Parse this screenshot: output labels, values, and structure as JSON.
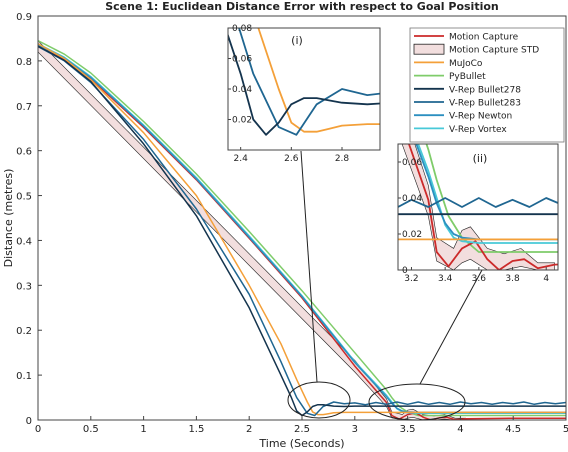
{
  "chart_data": {
    "type": "line",
    "title": "Scene 1: Euclidean Distance Error with respect to Goal Position",
    "xlabel": "Time (Seconds)",
    "ylabel": "Distance (metres)",
    "xlim": [
      0,
      5
    ],
    "ylim": [
      0,
      0.9
    ],
    "xticks": [
      "0",
      "0.5",
      "1",
      "1.5",
      "2",
      "2.5",
      "3",
      "3.5",
      "4",
      "4.5",
      "5"
    ],
    "yticks": [
      "0",
      "0.1",
      "0.2",
      "0.3",
      "0.4",
      "0.5",
      "0.6",
      "0.7",
      "0.8",
      "0.9"
    ],
    "grid": false,
    "legend_position": "top-right",
    "legend": [
      {
        "name": "Motion Capture",
        "color": "#cc2a2a",
        "kind": "line"
      },
      {
        "name": "Motion Capture STD",
        "color": "#f2dede",
        "kind": "band"
      },
      {
        "name": "MuJoCo",
        "color": "#f4a039",
        "kind": "line"
      },
      {
        "name": "PyBullet",
        "color": "#7fcc6a",
        "kind": "line"
      },
      {
        "name": "V-Rep Bullet278",
        "color": "#14344e",
        "kind": "line"
      },
      {
        "name": "V-Rep Bullet283",
        "color": "#1f6691",
        "kind": "line"
      },
      {
        "name": "V-Rep Newton",
        "color": "#2c8fc0",
        "kind": "line"
      },
      {
        "name": "V-Rep Vortex",
        "color": "#48c9d8",
        "kind": "line"
      }
    ],
    "std_band": {
      "x": [
        0,
        3.0,
        3.3,
        3.35,
        3.45,
        3.5,
        3.55,
        3.65,
        3.75,
        3.85,
        3.95,
        4.05
      ],
      "lower": [
        0.82,
        0.107,
        0.03,
        0.005,
        0.0,
        0.004,
        0.006,
        0.0,
        0.0,
        0.002,
        0.0,
        0.0
      ],
      "upper": [
        0.845,
        0.133,
        0.047,
        0.018,
        0.012,
        0.022,
        0.024,
        0.012,
        0.009,
        0.012,
        0.004,
        0.004
      ]
    },
    "series": [
      {
        "name": "PyBullet",
        "color": "#7fcc6a",
        "x": [
          0,
          0.25,
          0.5,
          1.0,
          1.5,
          2.0,
          2.5,
          3.0,
          3.3,
          3.35,
          3.42,
          3.5,
          3.6,
          3.75,
          3.9,
          4.1,
          4.5,
          5.0
        ],
        "y": [
          0.845,
          0.815,
          0.773,
          0.665,
          0.548,
          0.42,
          0.288,
          0.15,
          0.067,
          0.05,
          0.03,
          0.018,
          0.01,
          0.01,
          0.01,
          0.01,
          0.01,
          0.01
        ]
      },
      {
        "name": "Motion Capture",
        "color": "#cc2a2a",
        "x": [
          0,
          0.25,
          0.5,
          1.0,
          1.5,
          2.0,
          2.5,
          3.0,
          3.3,
          3.35,
          3.42,
          3.5,
          3.58,
          3.65,
          3.72,
          3.8,
          3.87,
          3.95,
          4.05,
          4.5,
          5.0
        ],
        "y": [
          0.832,
          0.803,
          0.76,
          0.652,
          0.535,
          0.405,
          0.272,
          0.12,
          0.039,
          0.01,
          0.002,
          0.012,
          0.016,
          0.006,
          0.0,
          0.005,
          0.006,
          0.001,
          0.003,
          0.004,
          0.004
        ]
      },
      {
        "name": "V-Rep Vortex",
        "color": "#48c9d8",
        "x": [
          0,
          0.25,
          0.5,
          1.0,
          1.5,
          2.0,
          2.5,
          3.0,
          3.3,
          3.35,
          3.4,
          3.45,
          3.5,
          3.6,
          4.0,
          4.5,
          5.0
        ],
        "y": [
          0.838,
          0.808,
          0.765,
          0.657,
          0.54,
          0.41,
          0.277,
          0.13,
          0.055,
          0.04,
          0.025,
          0.018,
          0.016,
          0.015,
          0.015,
          0.015,
          0.015
        ]
      },
      {
        "name": "V-Rep Newton",
        "color": "#2c8fc0",
        "x": [
          0,
          0.25,
          0.5,
          1.0,
          1.5,
          2.0,
          2.5,
          3.0,
          3.3,
          3.35,
          3.4,
          3.45,
          3.5,
          3.6,
          4.0,
          4.5,
          5.0
        ],
        "y": [
          0.836,
          0.806,
          0.763,
          0.655,
          0.537,
          0.407,
          0.275,
          0.128,
          0.052,
          0.037,
          0.026,
          0.02,
          0.018,
          0.017,
          0.017,
          0.017,
          0.017
        ]
      },
      {
        "name": "MuJoCo",
        "color": "#f4a039",
        "x": [
          0,
          0.25,
          0.5,
          1.0,
          1.5,
          2.0,
          2.3,
          2.45,
          2.55,
          2.6,
          2.65,
          2.7,
          2.75,
          2.8,
          2.9,
          3.0,
          3.5,
          4.0,
          4.5,
          5.0
        ],
        "y": [
          0.838,
          0.805,
          0.758,
          0.64,
          0.5,
          0.3,
          0.17,
          0.09,
          0.04,
          0.018,
          0.012,
          0.012,
          0.014,
          0.016,
          0.017,
          0.017,
          0.017,
          0.017,
          0.017,
          0.017
        ]
      },
      {
        "name": "V-Rep Bullet283",
        "color": "#1f6691",
        "x": [
          0,
          0.25,
          0.5,
          1.0,
          1.5,
          2.0,
          2.3,
          2.45,
          2.55,
          2.62,
          2.7,
          2.8,
          2.9,
          3.0,
          3.1,
          3.2,
          3.3,
          3.4,
          3.5,
          3.6,
          3.7,
          3.8,
          3.9,
          4.0,
          4.1,
          4.2,
          4.3,
          4.4,
          4.5,
          4.6,
          4.7,
          4.8,
          4.9,
          5.0
        ],
        "y": [
          0.832,
          0.8,
          0.752,
          0.625,
          0.47,
          0.28,
          0.13,
          0.05,
          0.015,
          0.01,
          0.03,
          0.04,
          0.036,
          0.038,
          0.034,
          0.039,
          0.035,
          0.04,
          0.035,
          0.04,
          0.035,
          0.039,
          0.035,
          0.04,
          0.036,
          0.039,
          0.035,
          0.039,
          0.036,
          0.04,
          0.035,
          0.039,
          0.036,
          0.039
        ]
      },
      {
        "name": "V-Rep Bullet278",
        "color": "#14344e",
        "x": [
          0,
          0.25,
          0.5,
          1.0,
          1.5,
          2.0,
          2.3,
          2.4,
          2.45,
          2.5,
          2.55,
          2.6,
          2.65,
          2.7,
          2.8,
          2.9,
          3.0,
          3.5,
          4.0,
          4.5,
          5.0
        ],
        "y": [
          0.833,
          0.801,
          0.754,
          0.615,
          0.455,
          0.25,
          0.1,
          0.05,
          0.02,
          0.01,
          0.018,
          0.03,
          0.034,
          0.034,
          0.031,
          0.03,
          0.031,
          0.031,
          0.031,
          0.031,
          0.031
        ]
      }
    ],
    "insets": [
      {
        "label": "(i)",
        "xlim": [
          2.35,
          2.95
        ],
        "ylim": [
          0,
          0.08
        ],
        "xticks": [
          "2.4",
          "2.6",
          "2.8"
        ],
        "yticks": [
          "0.02",
          "0.04",
          "0.06",
          "0.08"
        ]
      },
      {
        "label": "(ii)",
        "xlim": [
          3.12,
          4.07
        ],
        "ylim": [
          0,
          0.07
        ],
        "xticks": [
          "3.2",
          "3.4",
          "3.6",
          "3.8",
          "4"
        ],
        "yticks": [
          "0",
          "0.02",
          "0.04",
          "0.06"
        ]
      }
    ]
  }
}
